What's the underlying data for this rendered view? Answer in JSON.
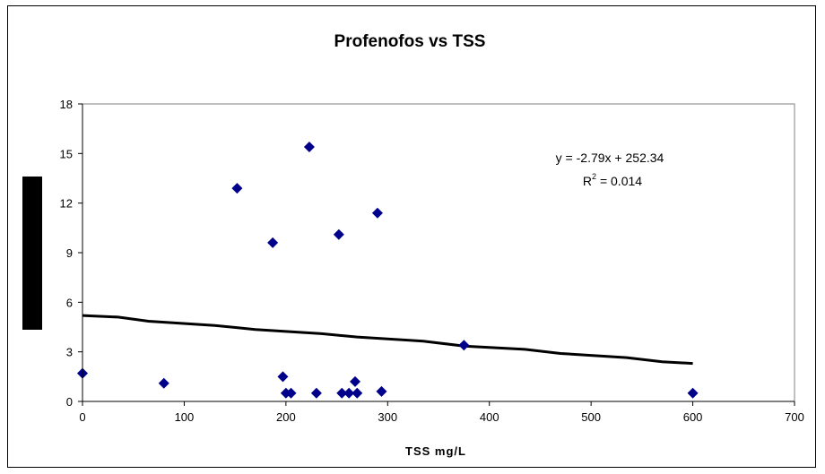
{
  "chart_data": {
    "type": "scatter",
    "title": "Profenofos vs TSS",
    "xlabel": "TSS mg/L",
    "ylabel": "",
    "xlim": [
      0,
      700
    ],
    "ylim": [
      0,
      18
    ],
    "xticks": [
      0,
      100,
      200,
      300,
      400,
      500,
      600,
      700
    ],
    "yticks": [
      0,
      3,
      6,
      9,
      12,
      15,
      18
    ],
    "grid": false,
    "marker_color": "#00008B",
    "trendline_color": "#000000",
    "points": [
      {
        "x": 0,
        "y": 1.7
      },
      {
        "x": 80,
        "y": 1.1
      },
      {
        "x": 152,
        "y": 12.9
      },
      {
        "x": 187,
        "y": 9.6
      },
      {
        "x": 197,
        "y": 1.5
      },
      {
        "x": 200,
        "y": 0.5
      },
      {
        "x": 205,
        "y": 0.5
      },
      {
        "x": 223,
        "y": 15.4
      },
      {
        "x": 230,
        "y": 0.5
      },
      {
        "x": 252,
        "y": 10.1
      },
      {
        "x": 255,
        "y": 0.5
      },
      {
        "x": 262,
        "y": 0.5
      },
      {
        "x": 268,
        "y": 1.2
      },
      {
        "x": 270,
        "y": 0.5
      },
      {
        "x": 290,
        "y": 11.4
      },
      {
        "x": 294,
        "y": 0.6
      },
      {
        "x": 375,
        "y": 3.4
      },
      {
        "x": 600,
        "y": 0.5
      }
    ],
    "trendline": [
      {
        "x": 0,
        "y": 5.2
      },
      {
        "x": 35,
        "y": 5.1
      },
      {
        "x": 65,
        "y": 4.85
      },
      {
        "x": 130,
        "y": 4.6
      },
      {
        "x": 170,
        "y": 4.35
      },
      {
        "x": 235,
        "y": 4.1
      },
      {
        "x": 270,
        "y": 3.9
      },
      {
        "x": 335,
        "y": 3.65
      },
      {
        "x": 375,
        "y": 3.35
      },
      {
        "x": 435,
        "y": 3.15
      },
      {
        "x": 470,
        "y": 2.9
      },
      {
        "x": 535,
        "y": 2.65
      },
      {
        "x": 570,
        "y": 2.4
      },
      {
        "x": 600,
        "y": 2.3
      }
    ],
    "annotation": {
      "equation": "y = -2.79x + 252.34",
      "r2_prefix": "R",
      "r2_sup": "2",
      "r2_value": " = 0.014"
    }
  }
}
